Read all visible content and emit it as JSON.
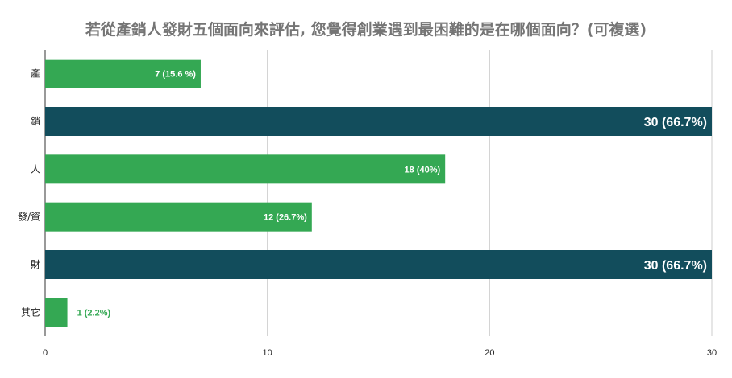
{
  "chart_data": {
    "type": "bar",
    "orientation": "horizontal",
    "title": "若從產銷人發財五個面向來評估, 您覺得創業遇到最困難的是在哪個面向？(可複選)",
    "categories": [
      "產",
      "銷",
      "人",
      "發/資",
      "財",
      "其它"
    ],
    "values": [
      7,
      30,
      18,
      12,
      30,
      1
    ],
    "data_labels": [
      "7 (15.6 %)",
      "30 (66.7%)",
      "18 (40%)",
      "12 (26.7%)",
      "30 (66.7%)",
      "1 (2.2%)"
    ],
    "highlighted": [
      false,
      true,
      false,
      false,
      true,
      false
    ],
    "xlim": [
      0,
      30
    ],
    "xticks": [
      0,
      10,
      20,
      30
    ],
    "grid": true,
    "colors": {
      "normal": "#34a853",
      "highlight": "#124d5c",
      "grid": "#cccccc",
      "axis": "#333333",
      "title": "#757575"
    }
  }
}
